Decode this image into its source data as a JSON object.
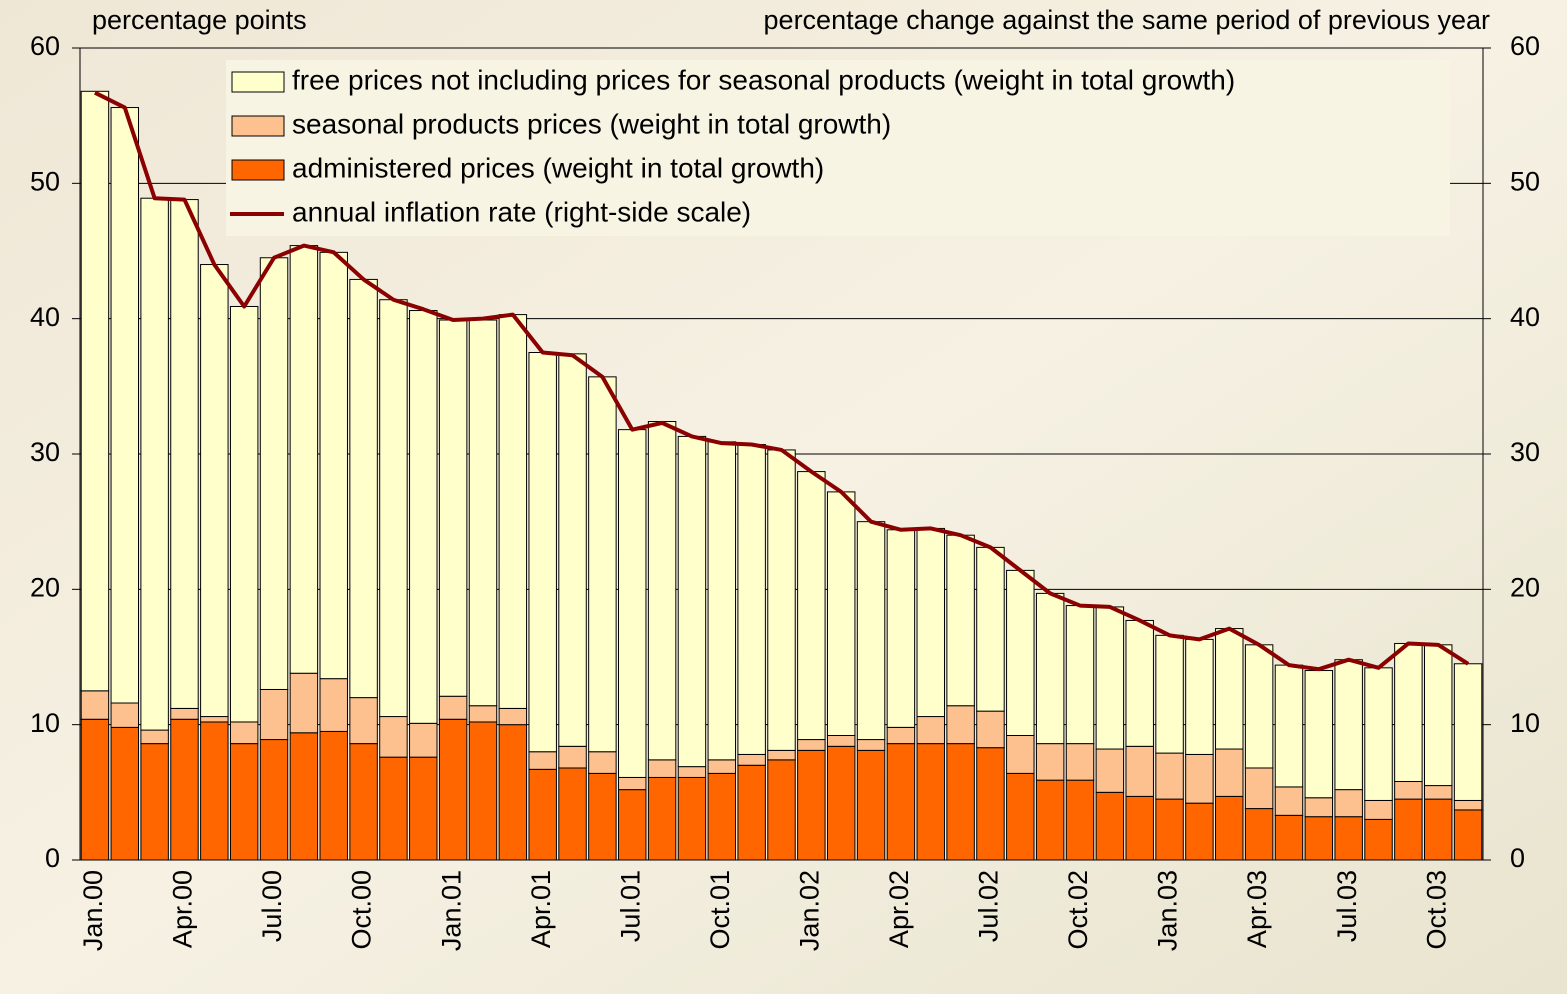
{
  "chart_data": {
    "type": "bar",
    "stacked": true,
    "y_label": "percentage points",
    "y2_label": "percentage change against the same period of previous year",
    "categories": [
      "Jan.00",
      null,
      null,
      "Apr.00",
      null,
      null,
      "Jul.00",
      null,
      null,
      "Oct.00",
      null,
      null,
      "Jan.01",
      null,
      null,
      "Apr.01",
      null,
      null,
      "Jul.01",
      null,
      null,
      "Oct.01",
      null,
      null,
      "Jan.02",
      null,
      null,
      "Apr.02",
      null,
      null,
      "Jul.02",
      null,
      null,
      "Oct.02",
      null,
      null,
      "Jan.03",
      null,
      null,
      "Apr.03",
      null,
      null,
      "Jul.03",
      null,
      null,
      "Oct.03",
      null
    ],
    "series": [
      {
        "name": "administered prices (weight in total growth)",
        "color": "#ff6600",
        "values": [
          10.4,
          9.8,
          8.6,
          10.4,
          10.2,
          8.6,
          8.9,
          9.4,
          9.5,
          8.6,
          7.6,
          7.6,
          10.4,
          10.2,
          10.0,
          6.7,
          6.8,
          6.4,
          5.2,
          6.1,
          6.1,
          6.4,
          7.0,
          7.4,
          8.1,
          8.4,
          8.1,
          8.6,
          8.6,
          8.6,
          8.3,
          6.4,
          5.9,
          5.9,
          5.0,
          4.7,
          4.5,
          4.2,
          4.7,
          3.8,
          3.3,
          3.2,
          3.2,
          3.0,
          4.5,
          4.5,
          3.7
        ]
      },
      {
        "name": "seasonal products prices (weight in total growth)",
        "color": "#fdc18f",
        "values": [
          2.1,
          1.8,
          1.0,
          0.8,
          0.4,
          1.6,
          3.7,
          4.4,
          3.9,
          3.4,
          3.0,
          2.5,
          1.7,
          1.2,
          1.2,
          1.3,
          1.6,
          1.6,
          0.9,
          1.3,
          0.8,
          1.0,
          0.8,
          0.7,
          0.8,
          0.8,
          0.8,
          1.2,
          2.0,
          2.8,
          2.7,
          2.8,
          2.7,
          2.7,
          3.2,
          3.7,
          3.4,
          3.6,
          3.5,
          3.0,
          2.1,
          1.4,
          2.0,
          1.4,
          1.3,
          1.0,
          0.7
        ]
      },
      {
        "name": "free prices not including prices for seasonal products (weight in total growth)",
        "color": "#ffffcc",
        "values": [
          44.3,
          44.0,
          39.3,
          37.6,
          33.4,
          30.7,
          31.9,
          31.6,
          31.5,
          30.9,
          30.8,
          30.5,
          27.8,
          28.5,
          29.1,
          29.5,
          29.0,
          27.7,
          25.7,
          25.0,
          24.4,
          23.5,
          22.9,
          22.2,
          19.8,
          18.0,
          16.1,
          14.6,
          13.9,
          12.6,
          12.1,
          12.2,
          11.1,
          10.2,
          10.5,
          9.3,
          8.7,
          8.5,
          8.9,
          9.1,
          9.0,
          9.4,
          9.6,
          9.8,
          10.2,
          10.4,
          10.1
        ]
      },
      {
        "name": "annual inflation rate (right-side scale)",
        "color": "#8b0000",
        "type": "line",
        "axis": "y2",
        "values": [
          56.7,
          55.6,
          48.9,
          48.8,
          44.0,
          40.9,
          44.5,
          45.4,
          44.9,
          42.9,
          41.4,
          40.7,
          39.9,
          40.0,
          40.3,
          37.5,
          37.3,
          35.7,
          31.8,
          32.3,
          31.3,
          30.8,
          30.7,
          30.3,
          28.7,
          27.2,
          25.0,
          24.4,
          24.5,
          24.0,
          23.1,
          21.4,
          19.7,
          18.8,
          18.7,
          17.7,
          16.6,
          16.3,
          17.1,
          15.9,
          14.4,
          14.1,
          14.8,
          14.2,
          16.0,
          15.9,
          14.5
        ]
      }
    ],
    "ylim": [
      0,
      60
    ],
    "yticks": [
      0,
      10,
      20,
      30,
      40,
      50,
      60
    ],
    "y2lim": [
      0,
      60
    ],
    "y2ticks": [
      0,
      10,
      20,
      30,
      40,
      50,
      60
    ],
    "grid": true
  }
}
